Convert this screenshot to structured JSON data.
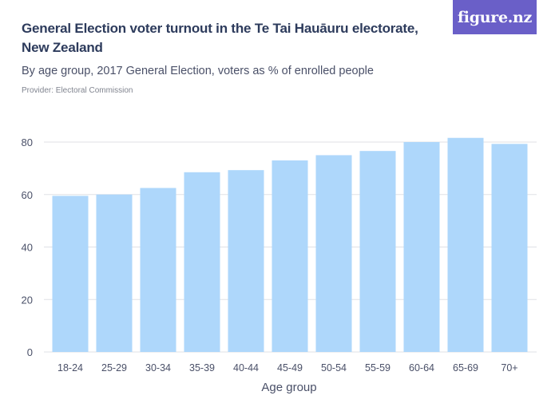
{
  "header": {
    "title": "General Election voter turnout in the Te Tai Hauāuru electorate, New Zealand",
    "subtitle": "By age group, 2017 General Election, voters as % of enrolled people",
    "provider": "Provider: Electoral Commission",
    "logo_text": "figure.nz"
  },
  "colors": {
    "bar": "#aed7fb",
    "gridline": "#dfe1e6",
    "axis_text": "#4a5068",
    "title": "#2d3b5c",
    "logo_bg": "#6a5fc8"
  },
  "chart_data": {
    "type": "bar",
    "title": "General Election voter turnout in the Te Tai Hauāuru electorate, New Zealand",
    "subtitle": "By age group, 2017 General Election, voters as % of enrolled people",
    "xlabel": "Age group",
    "ylabel": "",
    "categories": [
      "18-24",
      "25-29",
      "30-34",
      "35-39",
      "40-44",
      "45-49",
      "50-54",
      "55-59",
      "60-64",
      "65-69",
      "70+"
    ],
    "values": [
      59.5,
      60.0,
      62.5,
      68.5,
      69.3,
      73.0,
      75.0,
      76.6,
      80.0,
      81.6,
      79.3
    ],
    "yticks": [
      0,
      20,
      40,
      60,
      80
    ],
    "ylim": [
      0,
      80
    ],
    "grid": true,
    "legend": "none"
  }
}
